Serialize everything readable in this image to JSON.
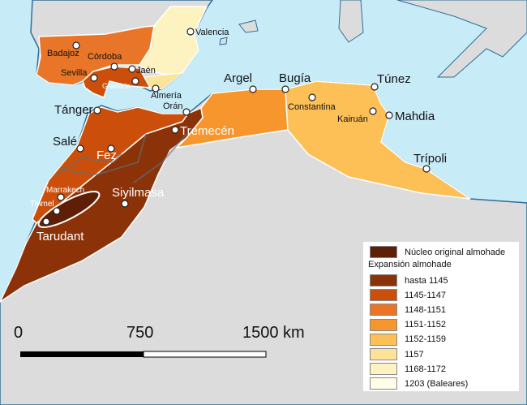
{
  "cities": {
    "valencia": "Valencia",
    "badajoz": "Badajoz",
    "cordoba": "Córdoba",
    "sevilla": "Sevilla",
    "jaen": "Jaén",
    "granada": "Granada",
    "almeria": "Almería",
    "argel": "Argel",
    "bugia": "Bugía",
    "tunez": "Túnez",
    "constantina": "Constantina",
    "kairuan": "Kairuán",
    "mahdia": "Mahdia",
    "tripoli": "Trípoli",
    "tanger": "Tánger",
    "oran": "Orán",
    "tremecen": "Tremecén",
    "sale": "Salé",
    "fez": "Fez",
    "marrakech": "Marrakech",
    "siyilmasa": "Siyilmasa",
    "tinmel": "Tinmel",
    "tarudant": "Tarudant"
  },
  "legend": {
    "core": {
      "label": "Núcleo original almohade",
      "color": "#5e1f06"
    },
    "heading": "Expansión almohade",
    "items": [
      {
        "label": "hasta 1145",
        "color": "#8c3209"
      },
      {
        "label": "1145-1147",
        "color": "#cb4f0b"
      },
      {
        "label": "1148-1151",
        "color": "#e97628"
      },
      {
        "label": "1151-1152",
        "color": "#f7962c"
      },
      {
        "label": "1152-1159",
        "color": "#fcc056"
      },
      {
        "label": "1157",
        "color": "#fde397"
      },
      {
        "label": "1168-1172",
        "color": "#fdf3c1"
      },
      {
        "label": "1203 (Baleares)",
        "color": "#fffde8"
      }
    ]
  },
  "scale_bar": {
    "ticks": [
      "0",
      "750",
      "1500 km"
    ]
  },
  "colors": {
    "sea": "#c8ebf8",
    "land": "#dcdcdc",
    "border": "#2e6f9a"
  }
}
